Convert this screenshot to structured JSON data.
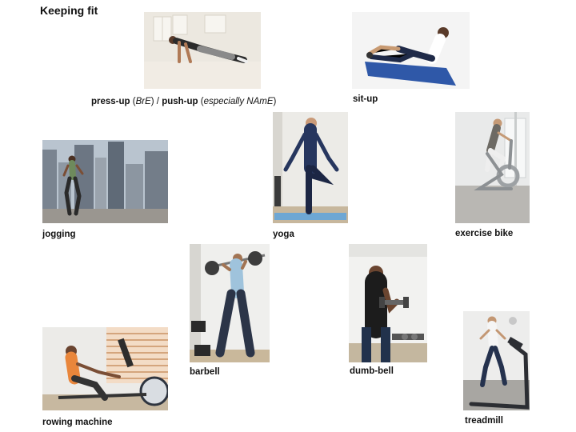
{
  "page": {
    "title": "Keeping fit"
  },
  "items": {
    "pressup": {
      "part1": "press-up",
      "part2": " (",
      "part3": "BrE",
      "part4": ") / ",
      "part5": "push-up",
      "part6": " (",
      "part7": "especially NAmE",
      "part8": ")"
    },
    "situp": {
      "label": "sit-up"
    },
    "jogging": {
      "label": "jogging"
    },
    "yoga": {
      "label": "yoga"
    },
    "exercise_bike": {
      "label": "exercise bike"
    },
    "barbell": {
      "label": "barbell"
    },
    "dumbbell": {
      "label": "dumb-bell"
    },
    "rowing_machine": {
      "label": "rowing machine"
    },
    "treadmill": {
      "label": "treadmill"
    }
  }
}
